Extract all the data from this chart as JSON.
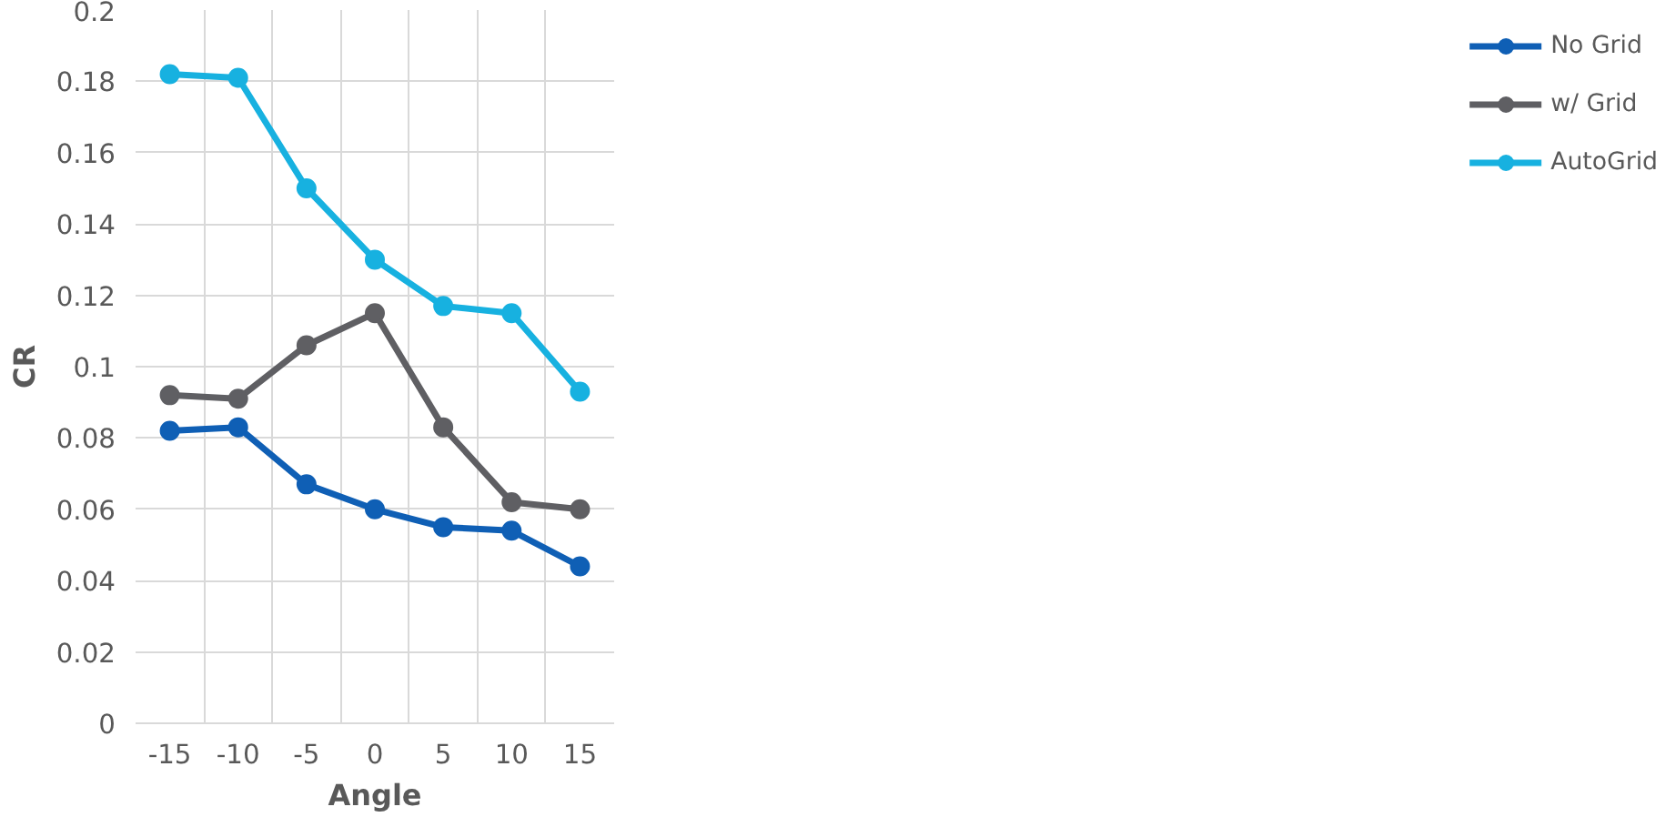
{
  "chart_data": {
    "type": "line",
    "xlabel": "Angle",
    "ylabel": "CR",
    "categories": [
      "-15",
      "-10",
      "-5",
      "0",
      "5",
      "10",
      "15"
    ],
    "series": [
      {
        "name": "No Grid",
        "color": "#0f5fb5",
        "values": [
          0.082,
          0.083,
          0.067,
          0.06,
          0.055,
          0.054,
          0.044
        ]
      },
      {
        "name": "w/ Grid",
        "color": "#5f5f63",
        "values": [
          0.092,
          0.091,
          0.106,
          0.115,
          0.083,
          0.062,
          0.06
        ]
      },
      {
        "name": "AutoGrid",
        "color": "#17b1e0",
        "values": [
          0.182,
          0.181,
          0.15,
          0.13,
          0.117,
          0.115,
          0.093
        ]
      }
    ],
    "ylim": [
      0,
      0.2
    ],
    "yticks": [
      0,
      0.02,
      0.04,
      0.06,
      0.08,
      0.1,
      0.12,
      0.14,
      0.16,
      0.18,
      0.2
    ],
    "grid": true,
    "legend": "right",
    "marker": "circle",
    "line_style": "solid"
  }
}
